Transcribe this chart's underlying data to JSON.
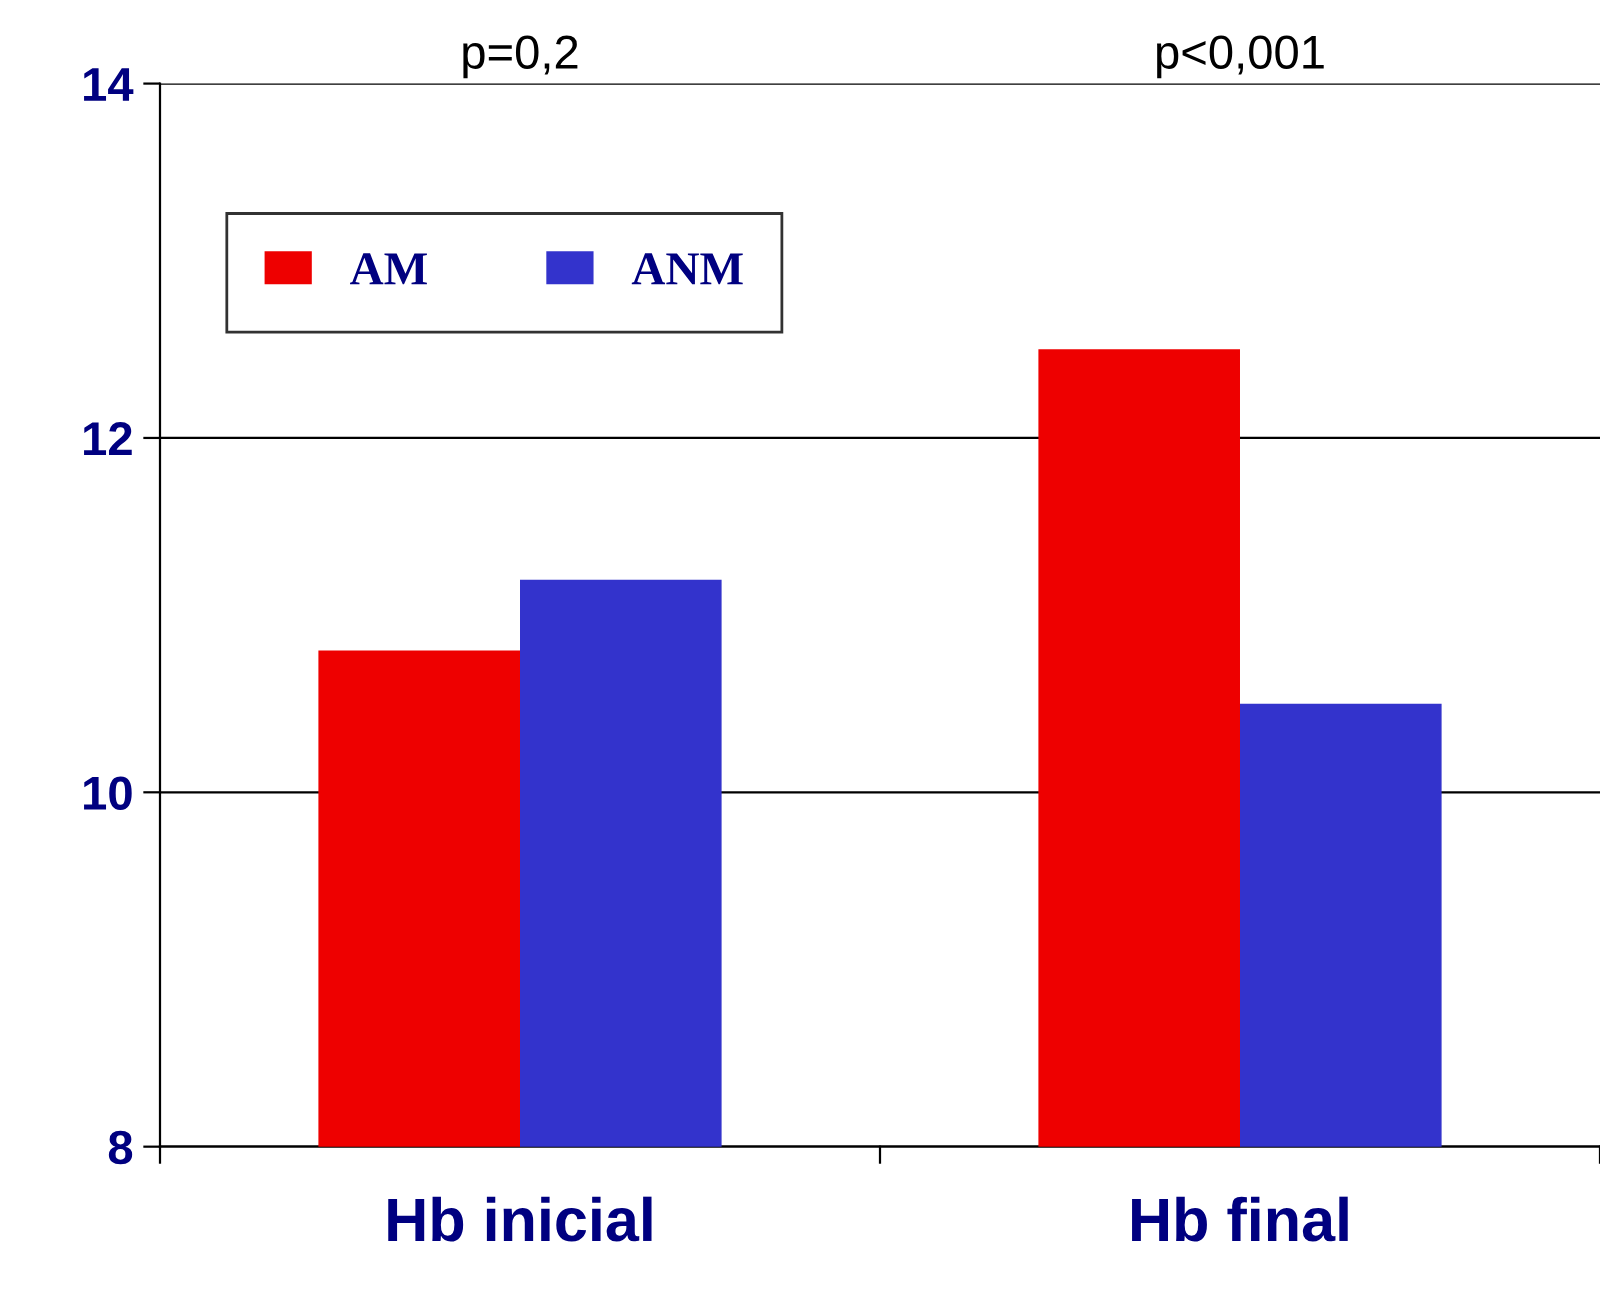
{
  "chart_data": {
    "type": "bar",
    "categories": [
      "Hb inicial",
      "Hb final"
    ],
    "series": [
      {
        "name": "AM",
        "color": "#ee0000",
        "values": [
          10.8,
          12.5
        ]
      },
      {
        "name": "ANM",
        "color": "#3333cc",
        "values": [
          11.2,
          10.5
        ]
      }
    ],
    "ylim": [
      8,
      14
    ],
    "yticks": [
      8,
      10,
      12,
      14
    ],
    "grid": "y",
    "legend": "top left",
    "annotations": [
      "p=0,2",
      "p<0,001"
    ]
  }
}
